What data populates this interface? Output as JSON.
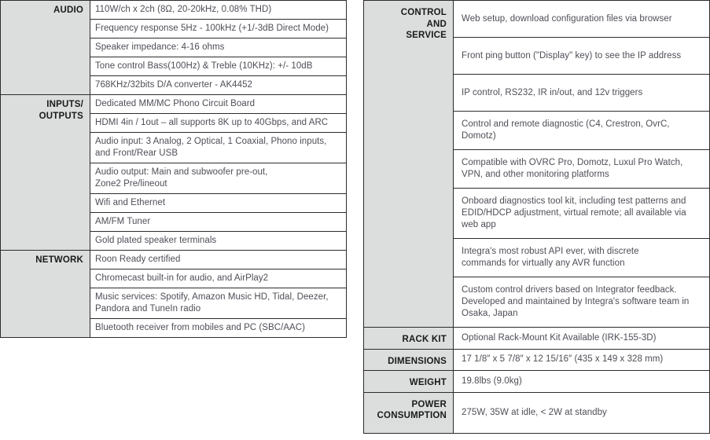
{
  "colors": {
    "page_bg": "#ffffff",
    "header_bg": "#dcdddd",
    "header_text": "#1a1a1c",
    "body_text": "#4e4e57",
    "border": "#2c2c2e",
    "cell_bg": "#ffffff"
  },
  "left_table": {
    "sections": [
      {
        "label": "AUDIO",
        "rows": [
          "110W/ch x 2ch (8Ω, 20-20kHz, 0.08% THD)",
          "Frequency response 5Hz - 100kHz (+1/-3dB Direct Mode)",
          "Speaker impedance: 4-16 ohms",
          "Tone control Bass(100Hz) & Treble (10KHz): +/- 10dB",
          "768KHz/32bits D/A converter - AK4452"
        ]
      },
      {
        "label": "INPUTS/\nOUTPUTS",
        "rows": [
          "Dedicated MM/MC Phono Circuit Board",
          "HDMI 4in / 1out – all supports 8K up to 40Gbps, and ARC",
          "Audio input: 3 Analog, 2 Optical, 1 Coaxial, Phono inputs, and Front/Rear USB",
          "Audio output: Main and subwoofer pre-out,\nZone2 Pre/lineout",
          "Wifi and Ethernet",
          "AM/FM Tuner",
          "Gold plated speaker terminals"
        ]
      },
      {
        "label": "NETWORK",
        "rows": [
          "Roon Ready certified",
          "Chromecast built-in for audio, and AirPlay2",
          "Music services: Spotify, Amazon Music HD, Tidal, Deezer,\nPandora and TuneIn radio",
          "Bluetooth receiver from mobiles and PC (SBC/AAC)"
        ]
      }
    ]
  },
  "right_table": {
    "sections": [
      {
        "label": "CONTROL\nAND\nSERVICE",
        "rows": [
          "Web setup, download configuration files via browser",
          "Front ping button (\"Display\" key) to see the IP address",
          "IP control, RS232, IR in/out, and 12v triggers",
          "Control and remote diagnostic (C4, Crestron, OvrC,\nDomotz)",
          "Compatible with OVRC Pro, Domotz, Luxul Pro Watch,\nVPN, and other monitoring platforms",
          "Onboard diagnostics tool kit, including test patterns and\nEDID/HDCP adjustment, virtual remote; all available via\nweb app",
          "Integra's most robust API ever, with discrete\ncommands for virtually any AVR function",
          "Custom control drivers based on Integrator feedback.\nDeveloped and maintained by Integra's software team in\nOsaka, Japan"
        ]
      },
      {
        "label": "RACK KIT",
        "rows": [
          "Optional Rack-Mount Kit Available (IRK-155-3D)"
        ]
      },
      {
        "label": "DIMENSIONS",
        "rows": [
          "17 1/8″ x 5 7/8″ x 12 15/16″ (435 x 149 x 328 mm)"
        ]
      },
      {
        "label": "WEIGHT",
        "rows": [
          "19.8lbs (9.0kg)"
        ]
      },
      {
        "label": "POWER\nCONSUMPTION",
        "rows": [
          "275W, 35W at idle, < 2W at standby"
        ]
      }
    ]
  }
}
